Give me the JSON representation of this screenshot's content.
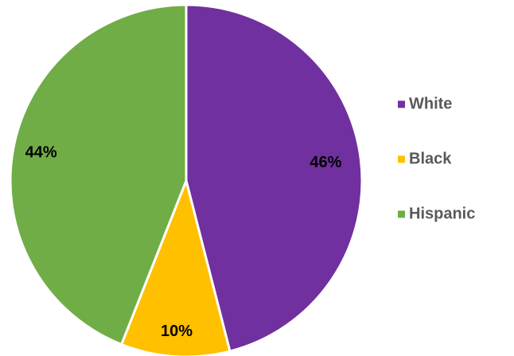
{
  "chart_data": {
    "type": "pie",
    "title": "",
    "categories": [
      "White",
      "Black",
      "Hispanic"
    ],
    "values": [
      46,
      10,
      44
    ],
    "data_labels": [
      "46%",
      "10%",
      "44%"
    ],
    "colors": [
      "#7030A0",
      "#FFC000",
      "#70AD47"
    ],
    "legend_position": "right",
    "start_angle": "12 o'clock",
    "direction": "clockwise"
  }
}
